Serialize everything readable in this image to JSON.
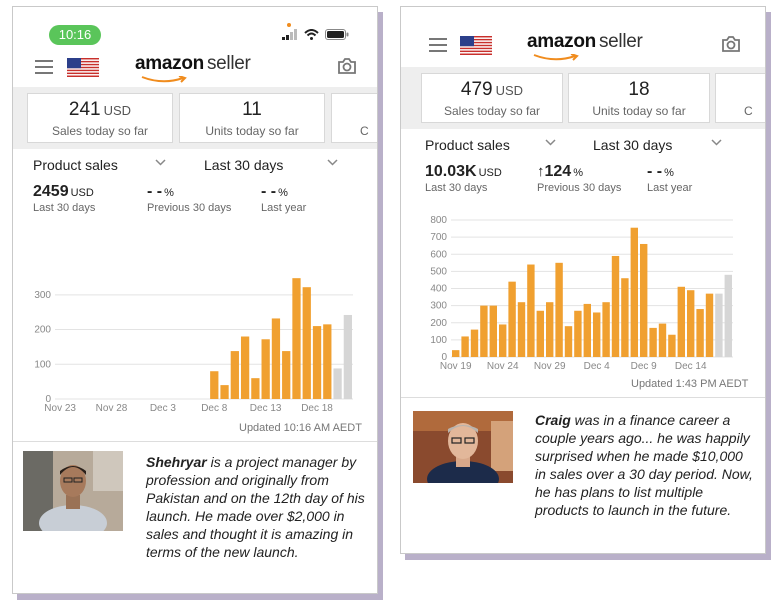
{
  "left": {
    "status_time": "10:16",
    "brand_word": "amazon",
    "brand_suffix": "seller",
    "tiles": [
      {
        "value": "241",
        "unit": "USD",
        "label": "Sales today so far"
      },
      {
        "value": "11",
        "unit": "",
        "label": "Units today so far"
      },
      {
        "value": "",
        "unit": "",
        "label": "C"
      }
    ],
    "selector_metric": "Product sales",
    "selector_period": "Last 30 days",
    "metrics": [
      {
        "value": "2459",
        "unit": "USD",
        "label": "Last 30 days"
      },
      {
        "value": "- -",
        "unit": "%",
        "label": "Previous 30 days"
      },
      {
        "value": "- -",
        "unit": "%",
        "label": "Last year"
      }
    ],
    "updated": "Updated 10:16 AM AEDT",
    "story_name": "Shehryar",
    "story_text": " is a project manager by profession and originally from Pakistan and on the 12th day of his launch. He made over $2,000 in sales and thought it is amazing in terms of the new launch.",
    "chart_data": {
      "type": "bar",
      "x_tick_labels": [
        "Nov 23",
        "Nov 28",
        "Dec 3",
        "Dec 8",
        "Dec 13",
        "Dec 18"
      ],
      "y_ticks": [
        0,
        100,
        200,
        300
      ],
      "ylim": [
        0,
        360
      ],
      "values": [
        0,
        0,
        0,
        0,
        0,
        0,
        0,
        0,
        0,
        0,
        0,
        0,
        0,
        0,
        0,
        80,
        40,
        138,
        180,
        60,
        172,
        232,
        138,
        348,
        322,
        210,
        215,
        88,
        242
      ],
      "bar_colors": [
        "orange",
        "orange",
        "orange",
        "orange",
        "orange",
        "orange",
        "orange",
        "orange",
        "orange",
        "orange",
        "orange",
        "orange",
        "orange",
        "orange",
        "orange",
        "orange",
        "orange",
        "orange",
        "orange",
        "orange",
        "orange",
        "orange",
        "orange",
        "orange",
        "orange",
        "orange",
        "orange",
        "gray",
        "gray"
      ]
    }
  },
  "right": {
    "brand_word": "amazon",
    "brand_suffix": "seller",
    "tiles": [
      {
        "value": "479",
        "unit": "USD",
        "label": "Sales today so far"
      },
      {
        "value": "18",
        "unit": "",
        "label": "Units today so far"
      },
      {
        "value": "",
        "unit": "",
        "label": "C"
      }
    ],
    "selector_metric": "Product sales",
    "selector_period": "Last 30 days",
    "metrics": [
      {
        "value": "10.03K",
        "unit": "USD",
        "label": "Last 30 days"
      },
      {
        "value": "124",
        "unit": "%",
        "label": "Previous 30 days",
        "arrow": "↑"
      },
      {
        "value": "- -",
        "unit": "%",
        "label": "Last year"
      }
    ],
    "updated": "Updated 1:43 PM AEDT",
    "story_name": "Craig",
    "story_text": " was in a finance career a couple years ago... he was happily surprised when he made $10,000 in sales over a 30 day period. Now, he has plans to list multiple products to launch in the future.",
    "chart_data": {
      "type": "bar",
      "x_tick_labels": [
        "Nov 19",
        "Nov 24",
        "Nov 29",
        "Dec 4",
        "Dec 9",
        "Dec 14"
      ],
      "y_ticks": [
        0,
        100,
        200,
        300,
        400,
        500,
        600,
        700,
        800
      ],
      "ylim": [
        0,
        800
      ],
      "values": [
        40,
        120,
        160,
        300,
        300,
        190,
        440,
        320,
        540,
        270,
        320,
        550,
        180,
        270,
        310,
        260,
        320,
        590,
        460,
        755,
        660,
        170,
        195,
        130,
        410,
        390,
        280,
        370,
        370,
        480
      ],
      "bar_colors": [
        "orange",
        "orange",
        "orange",
        "orange",
        "orange",
        "orange",
        "orange",
        "orange",
        "orange",
        "orange",
        "orange",
        "orange",
        "orange",
        "orange",
        "orange",
        "orange",
        "orange",
        "orange",
        "orange",
        "orange",
        "orange",
        "orange",
        "orange",
        "orange",
        "orange",
        "orange",
        "orange",
        "orange",
        "gray",
        "gray"
      ]
    }
  },
  "colors": {
    "bar_orange": "#f0a030",
    "bar_gray": "#d6d6d6",
    "grid": "#e3e3e3",
    "axis_text": "#888888"
  }
}
